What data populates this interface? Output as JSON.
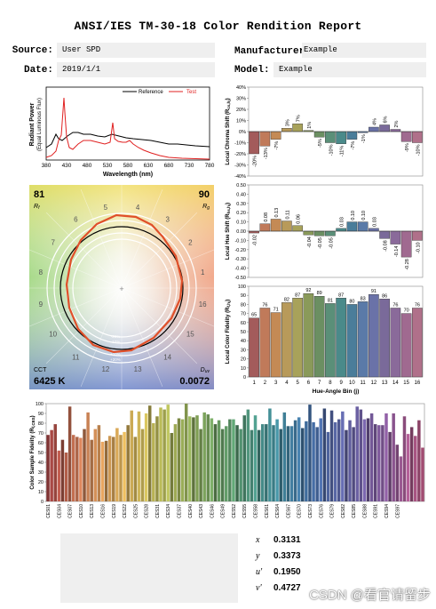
{
  "header": {
    "title": "ANSI/IES TM-30-18 Color Rendition Report",
    "source_label": "Source:",
    "source_value": "User SPD",
    "date_label": "Date:",
    "date_value": "2019/1/1",
    "manufacturer_label": "Manufacturer",
    "manufacturer_value": "Example",
    "model_label": "Model:",
    "model_value": "Example"
  },
  "spd": {
    "ylabel1": "Radiant Power",
    "ylabel2": "(Equal Luminous Flux)",
    "xlabel": "Wavelength (nm)",
    "xticks": [
      380,
      430,
      480,
      530,
      580,
      630,
      680,
      730,
      780
    ],
    "legend_reference": "Reference",
    "legend_test": "Test",
    "reference_color": "#000000",
    "test_color": "#e02020"
  },
  "cvg": {
    "rf_value": "81",
    "rf_label": "R",
    "rf_sub": "f",
    "rg_value": "90",
    "rg_label": "R",
    "rg_sub": "g",
    "cct_label": "CCT",
    "cct_value": "6425 K",
    "duv_label": "D",
    "duv_sub": "uv",
    "duv_value": "0.0072",
    "bin_numbers": [
      "1",
      "2",
      "3",
      "4",
      "5",
      "6",
      "7",
      "8",
      "9",
      "10",
      "11",
      "12",
      "13",
      "14",
      "15",
      "16"
    ],
    "ring_labels": [
      "-20%",
      "-10%",
      "+10%",
      "+20%"
    ]
  },
  "bin_colors": [
    "#a35b5b",
    "#c07a5a",
    "#c48a55",
    "#b89a5a",
    "#a8a25a",
    "#8a9a5a",
    "#6b8f62",
    "#5a8f78",
    "#4a8a8a",
    "#4a7d9a",
    "#5a7aa8",
    "#6a72a8",
    "#7a6a9a",
    "#8a6a9a",
    "#a06a90",
    "#b0708a"
  ],
  "chart_data": [
    {
      "type": "bar",
      "name": "chroma_shift",
      "ylabel": "Local Chroma Shift (R",
      "ylabel_sub": "cs,hj",
      "categories": [
        "1",
        "2",
        "3",
        "4",
        "5",
        "6",
        "7",
        "8",
        "9",
        "10",
        "11",
        "12",
        "13",
        "14",
        "15",
        "16"
      ],
      "values": [
        -20,
        -13,
        -7,
        3,
        7,
        1,
        -5,
        -10,
        -11,
        -7,
        -1,
        4,
        6,
        2,
        -9,
        -10
      ],
      "data_labels": [
        "-20%",
        "-13%",
        "-7%",
        "3%",
        "7%",
        "1%",
        "-5%",
        "-10%",
        "-11%",
        "-7%",
        "-1%",
        "4%",
        "6%",
        "2%",
        "-9%",
        "-10%"
      ],
      "yticks": [
        "40%",
        "30%",
        "20%",
        "10%",
        "0%",
        "-10%",
        "-20%",
        "-30%",
        "-40%"
      ],
      "ylim": [
        -40,
        40
      ]
    },
    {
      "type": "bar",
      "name": "hue_shift",
      "ylabel": "Local Hue Shift (R",
      "ylabel_sub": "hs,hj",
      "categories": [
        "1",
        "2",
        "3",
        "4",
        "5",
        "6",
        "7",
        "8",
        "9",
        "10",
        "11",
        "12",
        "13",
        "14",
        "15",
        "16"
      ],
      "values": [
        -0.02,
        0.08,
        0.13,
        0.11,
        0.06,
        -0.04,
        -0.05,
        -0.05,
        0.03,
        0.1,
        0.1,
        0.03,
        -0.08,
        -0.14,
        -0.28,
        -0.1
      ],
      "data_labels": [
        "-0.02",
        "0.08",
        "0.13",
        "0.11",
        "0.06",
        "-0.04",
        "-0.05",
        "-0.05",
        "0.03",
        "0.10",
        "0.10",
        "0.03",
        "-0.08",
        "-0.14",
        "-0.28",
        "-0.10"
      ],
      "yticks": [
        "0.50",
        "0.40",
        "0.30",
        "0.20",
        "0.10",
        "0.00",
        "-0.10",
        "-0.20",
        "-0.30",
        "-0.40",
        "-0.50"
      ],
      "ylim": [
        -0.5,
        0.5
      ]
    },
    {
      "type": "bar",
      "name": "color_fidelity",
      "ylabel": "Local Color Fidelity (R",
      "ylabel_sub": "f,hj",
      "xlabel": "Hue-Angle Bin (j)",
      "categories": [
        "1",
        "2",
        "3",
        "4",
        "5",
        "6",
        "7",
        "8",
        "9",
        "10",
        "11",
        "12",
        "13",
        "14",
        "15",
        "16"
      ],
      "values": [
        65,
        76,
        71,
        82,
        87,
        92,
        89,
        81,
        87,
        80,
        83,
        91,
        86,
        76,
        70,
        76
      ],
      "data_labels": [
        "65",
        "76",
        "71",
        "82",
        "87",
        "92",
        "89",
        "81",
        "87",
        "80",
        "83",
        "91",
        "86",
        "76",
        "70",
        "76"
      ],
      "yticks": [
        "100",
        "90",
        "80",
        "70",
        "60",
        "50",
        "40",
        "30",
        "20",
        "10",
        "0"
      ],
      "ylim": [
        0,
        100
      ]
    },
    {
      "type": "bar",
      "name": "sample_fidelity",
      "ylabel": "Color Sample Fidelity (R",
      "ylabel_sub": "f,CES",
      "yticks": [
        "100",
        "90",
        "80",
        "70",
        "60",
        "50",
        "40",
        "30",
        "20",
        "10",
        "0"
      ],
      "ylim": [
        0,
        100
      ],
      "xtick_labels": [
        "CES01",
        "CES04",
        "CES07",
        "CES10",
        "CES13",
        "CES16",
        "CES19",
        "CES22",
        "CES25",
        "CES28",
        "CES31",
        "CES34",
        "CES37",
        "CES40",
        "CES43",
        "CES46",
        "CES49",
        "CES52",
        "CES55",
        "CES58",
        "CES61",
        "CES64",
        "CES67",
        "CES70",
        "CES73",
        "CES76",
        "CES79",
        "CES82",
        "CES85",
        "CES88",
        "CES91",
        "CES94",
        "CES97"
      ],
      "values": [
        68,
        73,
        79,
        52,
        63,
        50,
        97,
        68,
        66,
        65,
        74,
        91,
        63,
        74,
        78,
        61,
        62,
        67,
        66,
        75,
        68,
        71,
        78,
        93,
        66,
        92,
        74,
        90,
        98,
        80,
        87,
        96,
        94,
        99,
        70,
        79,
        85,
        84,
        100,
        87,
        86,
        88,
        74,
        91,
        89,
        85,
        79,
        83,
        74,
        77,
        84,
        84,
        78,
        74,
        88,
        94,
        73,
        88,
        73,
        79,
        79,
        95,
        78,
        84,
        74,
        91,
        77,
        77,
        83,
        86,
        75,
        82,
        99,
        81,
        76,
        85,
        95,
        71,
        93,
        81,
        84,
        92,
        73,
        83,
        76,
        97,
        94,
        84,
        85,
        90,
        79,
        78,
        78,
        90,
        71,
        90,
        58,
        46,
        87,
        69,
        76,
        67,
        83,
        55
      ]
    }
  ],
  "chromaticity": {
    "x_label": "x",
    "x_value": "0.3131",
    "y_label": "y",
    "y_value": "0.3373",
    "u_label": "u'",
    "u_value": "0.1950",
    "v_label": "v'",
    "v_value": "0.4727"
  },
  "watermark": "CSDN @看官请留步"
}
